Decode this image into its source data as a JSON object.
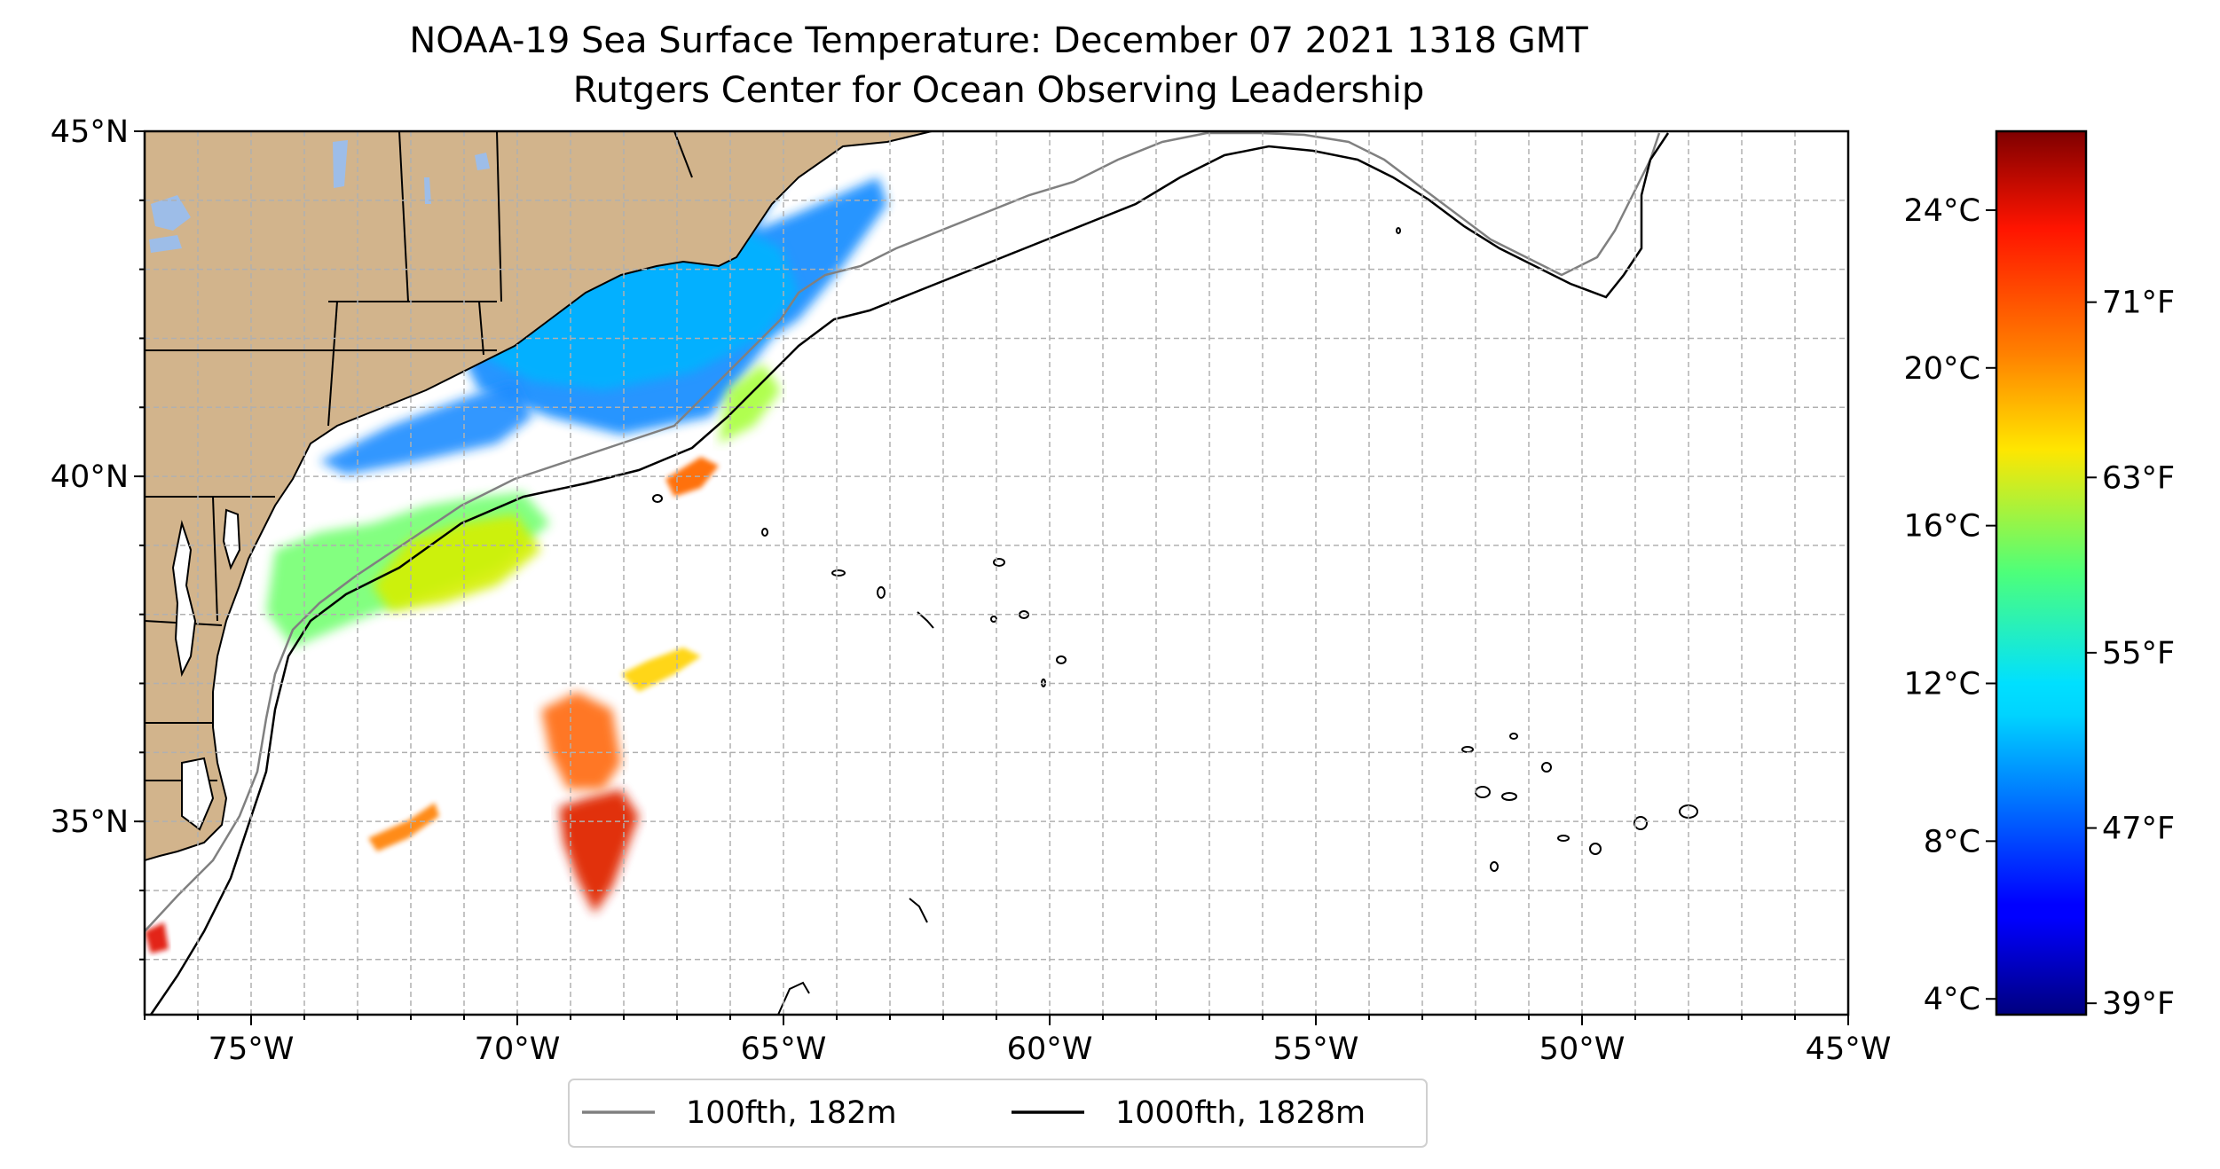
{
  "title": {
    "line1": "NOAA-19 Sea Surface Temperature: December 07 2021 1318 GMT",
    "line2": "Rutgers Center for Ocean Observing Leadership"
  },
  "map": {
    "extent": {
      "lon": [
        -77,
        -45
      ],
      "lat": [
        32.2,
        45
      ]
    },
    "lat_ticks": [
      {
        "value": 45,
        "label": "45°N"
      },
      {
        "value": 40,
        "label": "40°N"
      },
      {
        "value": 35,
        "label": "35°N"
      }
    ],
    "lon_ticks": [
      {
        "value": -75,
        "label": "75°W"
      },
      {
        "value": -70,
        "label": "70°W"
      },
      {
        "value": -65,
        "label": "65°W"
      },
      {
        "value": -60,
        "label": "60°W"
      },
      {
        "value": -55,
        "label": "55°W"
      },
      {
        "value": -50,
        "label": "50°W"
      },
      {
        "value": -45,
        "label": "45°W"
      }
    ],
    "grid": "dashed, every 1 degree",
    "colors": {
      "land": "#d2b48c",
      "lakes": "#9dbde8",
      "isobath_100fth": "#808080",
      "isobath_1000fth": "#000000",
      "grid": "#b0b0b0"
    }
  },
  "legend": {
    "placement": "bottom-center",
    "items": [
      {
        "label": "100fth, 182m",
        "color": "#808080"
      },
      {
        "label": "1000fth, 1828m",
        "color": "#000000"
      }
    ]
  },
  "colorbar": {
    "colormap": "jet",
    "range_c": [
      3.6,
      26
    ],
    "celsius_ticks": [
      {
        "value": 4,
        "label": "4°C"
      },
      {
        "value": 8,
        "label": "8°C"
      },
      {
        "value": 12,
        "label": "12°C"
      },
      {
        "value": 16,
        "label": "16°C"
      },
      {
        "value": 20,
        "label": "20°C"
      },
      {
        "value": 24,
        "label": "24°C"
      }
    ],
    "fahrenheit_ticks": [
      {
        "value": 39,
        "label": "39°F"
      },
      {
        "value": 47,
        "label": "47°F"
      },
      {
        "value": 55,
        "label": "55°F"
      },
      {
        "value": 63,
        "label": "63°F"
      },
      {
        "value": 71,
        "label": "71°F"
      }
    ]
  }
}
